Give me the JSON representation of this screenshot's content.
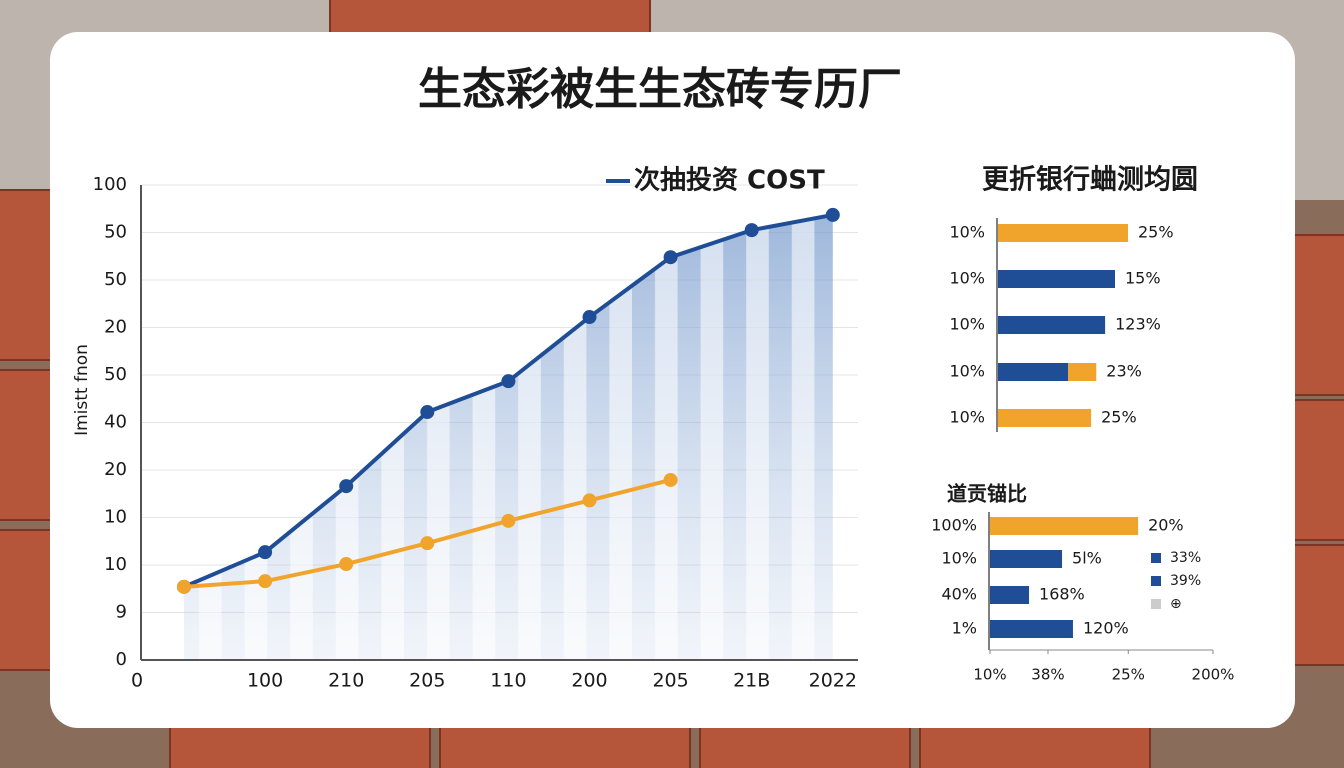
{
  "title": "生态彩被生生态砖专历厂",
  "chart_data": [
    {
      "type": "line",
      "y_label": "Imistt fnon",
      "x_origin_label": "0",
      "categories": [
        null,
        "100",
        "210",
        "205",
        "110",
        "200",
        "205",
        "21B",
        "2022"
      ],
      "ylim": [
        0,
        100
      ],
      "yticks": [
        0,
        {
          "value": 10,
          "label": "9"
        },
        {
          "value": 20,
          "label": "10"
        },
        {
          "value": 30,
          "label": "10"
        },
        {
          "value": 40,
          "label": "20"
        },
        {
          "value": 50,
          "label": "40"
        },
        {
          "value": 60,
          "label": "50"
        },
        {
          "value": 70,
          "label": "20"
        },
        {
          "value": 80,
          "label": "50"
        },
        {
          "value": 90,
          "label": "50"
        },
        100
      ],
      "grid": true,
      "series": [
        {
          "name": "次抽投资 COST",
          "color": "#1f4e96",
          "values": [
            15.4,
            22.7,
            36.6,
            52.2,
            58.7,
            72.2,
            84.8,
            90.5,
            93.7
          ]
        },
        {
          "color": "#f0a42c",
          "values": [
            15.4,
            16.6,
            20.2,
            24.6,
            29.3,
            33.6,
            37.9,
            null,
            null
          ]
        }
      ]
    },
    {
      "type": "hbar",
      "title": "更折银行蛐测均圆",
      "categories": [
        "10%",
        "10%",
        "10%",
        "10%",
        "10%"
      ],
      "xlim": [
        0,
        100
      ],
      "series": [
        {
          "color": "#1f4e96",
          "values": [
            null,
            22.5,
            20.6,
            13.5,
            null
          ]
        },
        {
          "color": "#f0a42c",
          "values": [
            25,
            null,
            null,
            5.4,
            17.9
          ]
        }
      ],
      "annotations": [
        "25%",
        "15%",
        "123%",
        "23%",
        "25%"
      ]
    },
    {
      "type": "hbar",
      "title": "道贡锚比",
      "categories": [
        "100%",
        "10%",
        "40%",
        "1%"
      ],
      "xlim": [
        0,
        100
      ],
      "xticks": [
        {
          "value": 0,
          "label": "10%"
        },
        {
          "value": 26,
          "label": "38%"
        },
        {
          "value": 62,
          "label": "25%"
        },
        {
          "value": 100,
          "label": "200%"
        }
      ],
      "series": [
        {
          "color": "#1f4e96",
          "values": [
            null,
            32.3,
            17.5,
            37.2
          ]
        },
        {
          "color": "#f0a42c",
          "values": [
            66.4,
            null,
            null,
            null
          ]
        }
      ],
      "annotations": [
        "20%",
        "5l%",
        "168%",
        "120%"
      ],
      "legend": [
        {
          "name": "33%",
          "color": "#1f4e96"
        },
        {
          "name": "39%",
          "color": "#1f4e96"
        },
        {
          "name": "⊕",
          "color": "#cccccc"
        }
      ]
    }
  ]
}
